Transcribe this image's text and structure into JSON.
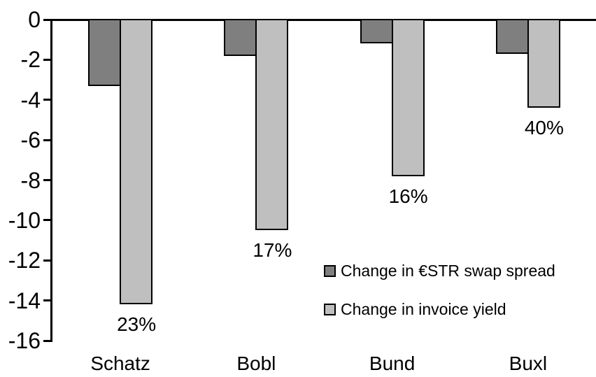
{
  "chart_data": {
    "type": "bar",
    "orientation": "vertical",
    "categories": [
      "Schatz",
      "Bobl",
      "Bund",
      "Buxl"
    ],
    "series": [
      {
        "name": "Change in €STR swap spread",
        "color": "#7f7f7f",
        "values": [
          -3.3,
          -1.8,
          -1.2,
          -1.7
        ]
      },
      {
        "name": "Change in invoice yield",
        "color": "#bfbfbf",
        "values": [
          -14.2,
          -10.5,
          -7.8,
          -4.4
        ]
      }
    ],
    "data_labels": {
      "attached_to_series": "Change in invoice yield",
      "values": [
        "23%",
        "17%",
        "16%",
        "40%"
      ]
    },
    "y_axis": {
      "min": -16,
      "max": 0,
      "tick_step": 2,
      "tick_labels": [
        "0",
        "-2",
        "-4",
        "-6",
        "-8",
        "-10",
        "-12",
        "-14",
        "-16"
      ]
    },
    "x_axis": {
      "labels": [
        "Schatz",
        "Bobl",
        "Bund",
        "Buxl"
      ]
    },
    "legend": {
      "position": "inside-right-middle",
      "entries": [
        "Change in €STR swap spread",
        "Change in invoice yield"
      ]
    },
    "colors": {
      "axis": "#000000",
      "text": "#000000",
      "bar_border": "#000000",
      "background": "#ffffff"
    },
    "grid": false,
    "title": ""
  }
}
